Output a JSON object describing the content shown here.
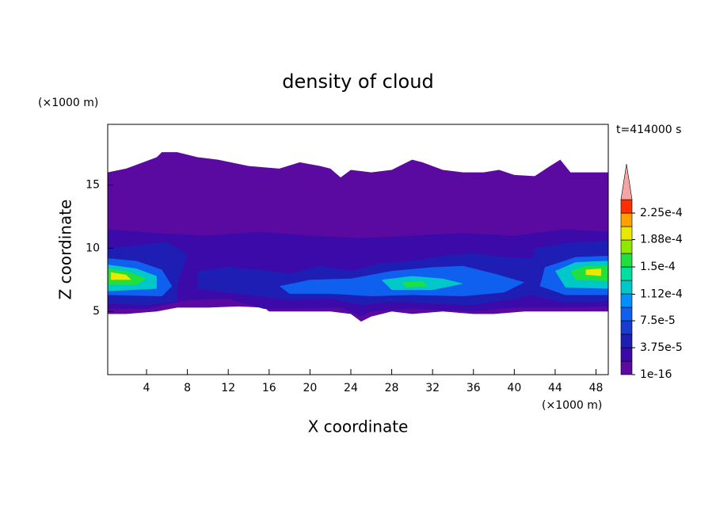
{
  "chart_data": {
    "type": "contour",
    "title": "density of cloud",
    "x_label": "X coordinate",
    "y_label": "Z coordinate",
    "x_unit": "(×1000 m)",
    "y_unit": "(×1000 m)",
    "time_label": "t=414000 s",
    "xlim": [
      0.2,
      49.2
    ],
    "ylim": [
      0,
      19.8
    ],
    "xticks": [
      4,
      8,
      12,
      16,
      20,
      24,
      28,
      32,
      36,
      40,
      44,
      48
    ],
    "yticks": [
      5,
      10,
      15
    ],
    "colorbar": {
      "levels": [
        1e-16,
        1.875e-05,
        3.75e-05,
        5.625e-05,
        7.5e-05,
        9.375e-05,
        0.0001125,
        0.00013125,
        0.00015,
        0.00016875,
        0.0001875,
        0.00020625,
        0.000225,
        0.00024375
      ],
      "colors": [
        "#5a0aa0",
        "#3c0aa8",
        "#1e1eb4",
        "#1a3ad0",
        "#1060f0",
        "#0090ff",
        "#00c8c8",
        "#00e0a0",
        "#20e040",
        "#90e800",
        "#e8e800",
        "#ffa000",
        "#ff3000"
      ],
      "extend_color": "#f4a4a4",
      "ticks": [
        1e-16,
        {
          "value": 3.75e-05,
          "label": "3.75e-5"
        },
        {
          "value": 7.5e-05,
          "label": "7.5e-5"
        },
        {
          "value": 0.000112,
          "label": "1.12e-4"
        },
        {
          "value": 0.00015,
          "label": "1.5e-4"
        },
        {
          "value": 0.000188,
          "label": "1.88e-4"
        },
        {
          "value": 0.000225,
          "label": "2.25e-4"
        }
      ]
    },
    "regions": [
      {
        "level": 1e-16,
        "x": [
          0.2,
          2,
          3,
          5,
          5.5,
          7,
          9,
          11,
          14,
          17,
          19,
          21,
          22,
          23,
          24,
          26,
          28,
          30,
          31,
          33,
          35,
          37,
          38.5,
          40,
          42,
          43.5,
          44.5,
          45.5,
          49.2,
          49.2,
          47,
          44,
          41,
          38,
          36,
          33,
          30,
          28,
          26,
          25,
          24,
          22,
          19,
          16,
          15.5,
          13,
          10,
          7,
          5,
          2,
          0.2
        ],
        "y": [
          16,
          16.3,
          16.6,
          17.2,
          17.6,
          17.6,
          17.2,
          17,
          16.5,
          16.3,
          16.8,
          16.5,
          16.3,
          15.6,
          16.2,
          16,
          16.2,
          17,
          16.8,
          16.2,
          16,
          16,
          16.2,
          15.8,
          15.7,
          16.5,
          17,
          16,
          16,
          5,
          5,
          5,
          5,
          4.8,
          4.8,
          5,
          4.8,
          5,
          4.6,
          4.2,
          4.8,
          5,
          5,
          5,
          5.3,
          5.4,
          5.3,
          5.3,
          5,
          4.8,
          4.8
        ]
      },
      {
        "level": 1.875e-05,
        "x": [
          0.2,
          5,
          10,
          15,
          20,
          25,
          30,
          35,
          40,
          45,
          49.2,
          49.2,
          45,
          40,
          36,
          30,
          26,
          25,
          23,
          18,
          15.5,
          12,
          8,
          4,
          0.2
        ],
        "y": [
          11.5,
          11.2,
          11,
          11.3,
          11,
          10.8,
          11,
          11.2,
          11,
          11.5,
          11.3,
          5.4,
          5.3,
          5.3,
          5,
          5.2,
          5,
          4.6,
          5.3,
          5.2,
          5.2,
          6,
          5.9,
          5.2,
          5.2
        ]
      },
      {
        "level": 3.75e-05,
        "x": [
          0.2,
          3,
          6,
          8,
          7,
          7,
          4,
          0.2
        ],
        "y": [
          10,
          10.2,
          10.5,
          9.5,
          7,
          5.8,
          5.5,
          5.6
        ]
      },
      {
        "level": 3.75e-05,
        "x": [
          9,
          12,
          15,
          18,
          21,
          24,
          27,
          30,
          33,
          36,
          39,
          42,
          44,
          43,
          40,
          36,
          32,
          28,
          25,
          22,
          18,
          15,
          12,
          9
        ],
        "y": [
          8.2,
          8.5,
          8.3,
          8,
          8.6,
          8.2,
          8.8,
          9,
          9.4,
          9.6,
          9.3,
          9.2,
          8,
          6.5,
          6,
          5.5,
          5.6,
          5.8,
          5.5,
          6,
          5.9,
          6.2,
          6.5,
          6.8
        ]
      },
      {
        "level": 3.75e-05,
        "x": [
          42,
          45,
          49.2,
          49.2,
          45,
          42,
          41.5
        ],
        "y": [
          10,
          10.4,
          10.6,
          5.8,
          5.7,
          6.2,
          8
        ]
      },
      {
        "level": 7.5e-05,
        "x": [
          0.2,
          3,
          5.5,
          6.5,
          5.5,
          0.2
        ],
        "y": [
          9.2,
          9,
          8.3,
          7,
          6.2,
          6.3
        ]
      },
      {
        "level": 7.5e-05,
        "x": [
          17,
          20,
          24,
          28,
          32,
          35,
          38,
          41,
          39,
          35,
          30,
          26,
          22,
          18
        ],
        "y": [
          7,
          7.5,
          7.6,
          8.2,
          8.5,
          8.6,
          8,
          7.3,
          6.5,
          6.2,
          6.3,
          6.2,
          6.4,
          6.4
        ]
      },
      {
        "level": 7.5e-05,
        "x": [
          43,
          46,
          49.2,
          49.2,
          45,
          42.5
        ],
        "y": [
          8.5,
          9.3,
          9.4,
          6.3,
          6.3,
          7
        ]
      },
      {
        "level": 0.0001125,
        "x": [
          0.2,
          3,
          5,
          5,
          0.2
        ],
        "y": [
          8.7,
          8.4,
          7.8,
          6.8,
          6.6
        ]
      },
      {
        "level": 0.0001125,
        "x": [
          27,
          30,
          33,
          35,
          32,
          28
        ],
        "y": [
          7.5,
          7.8,
          7.6,
          7.2,
          6.7,
          6.7
        ]
      },
      {
        "level": 0.0001125,
        "x": [
          44,
          46,
          49.2,
          49.2,
          45
        ],
        "y": [
          8.2,
          8.9,
          9,
          6.8,
          6.9
        ]
      },
      {
        "level": 0.00015,
        "x": [
          0.2,
          2,
          4,
          3,
          0.2
        ],
        "y": [
          8.4,
          8.2,
          7.6,
          7.1,
          7.1
        ]
      },
      {
        "level": 0.00015,
        "x": [
          29,
          31,
          31.5,
          29.5
        ],
        "y": [
          7.3,
          7.4,
          7,
          6.9
        ]
      },
      {
        "level": 0.00015,
        "x": [
          45.5,
          47,
          49.2,
          49.2,
          46
        ],
        "y": [
          8.2,
          8.6,
          8.6,
          7.4,
          7.5
        ]
      },
      {
        "level": 0.0001875,
        "x": [
          0.5,
          2,
          2.5,
          0.5
        ],
        "y": [
          8.1,
          7.9,
          7.5,
          7.5
        ]
      },
      {
        "level": 0.0001875,
        "x": [
          47,
          48.5,
          48.5,
          47
        ],
        "y": [
          8.3,
          8.4,
          7.8,
          7.9
        ]
      }
    ]
  }
}
